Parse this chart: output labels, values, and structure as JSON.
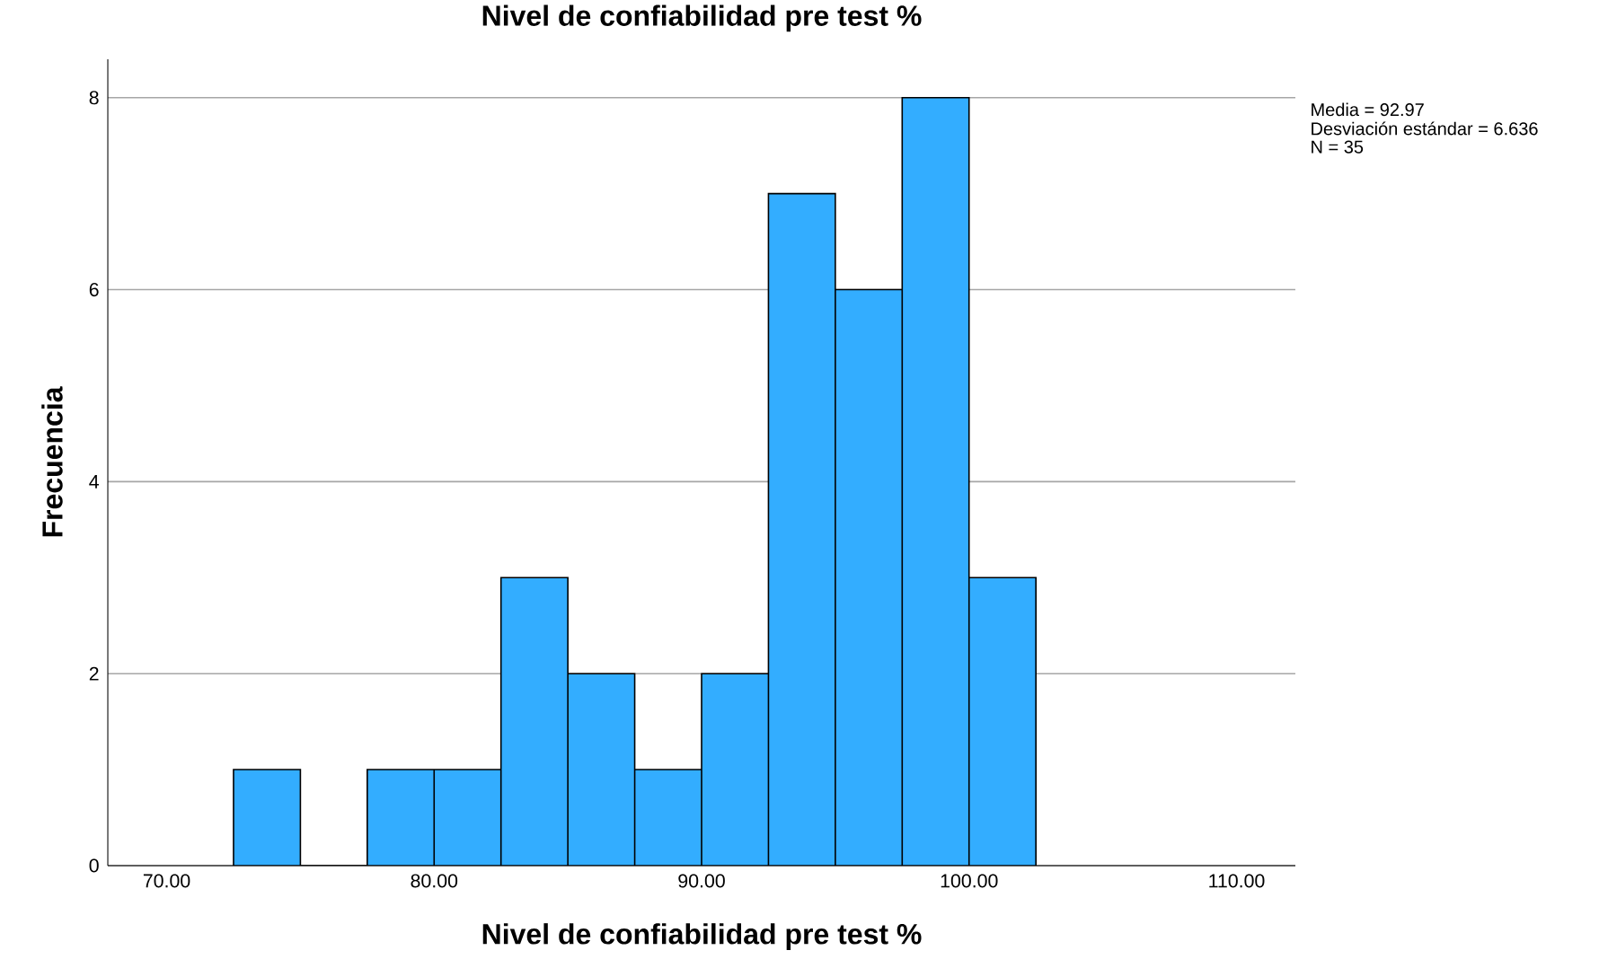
{
  "chart_data": {
    "type": "histogram",
    "title": "Nivel de confiabilidad pre test %",
    "xlabel": "Nivel de confiabilidad pre test %",
    "ylabel": "Frecuencia",
    "bins": [
      72.5,
      75,
      77.5,
      80,
      82.5,
      85,
      87.5,
      90,
      92.5,
      95,
      97.5,
      100,
      102.5
    ],
    "values": [
      1,
      0,
      1,
      1,
      3,
      2,
      1,
      2,
      7,
      6,
      8,
      3
    ],
    "color": "#33adff",
    "xlim": [
      67.8,
      112.2
    ],
    "ylim": [
      0,
      8.4
    ],
    "xticks": [
      {
        "value": 70,
        "label": "70.00"
      },
      {
        "value": 80,
        "label": "80.00"
      },
      {
        "value": 90,
        "label": "90.00"
      },
      {
        "value": 100,
        "label": "100.00"
      },
      {
        "value": 110,
        "label": "110.00"
      }
    ],
    "yticks": [
      0,
      2,
      4,
      6,
      8
    ],
    "grid": "y",
    "annotations": [
      "Media = 92.97",
      "Desviación estándar = 6.636",
      "N = 35"
    ]
  }
}
